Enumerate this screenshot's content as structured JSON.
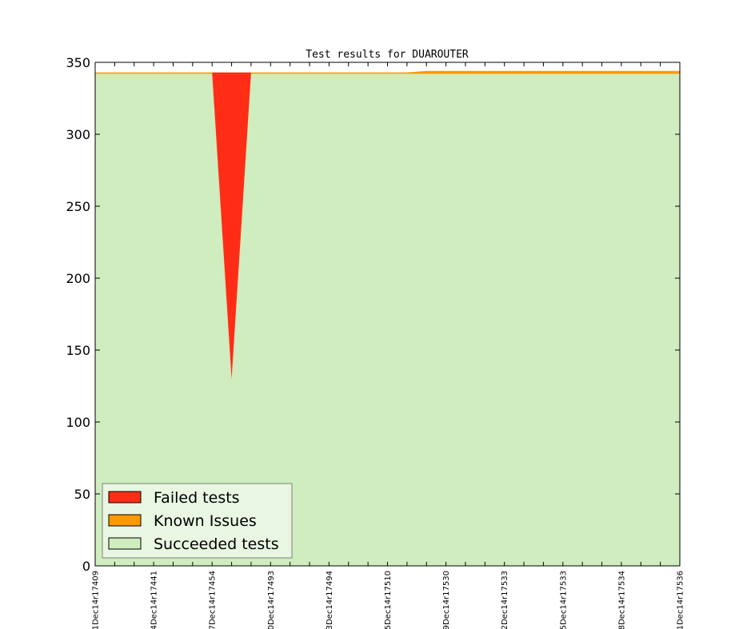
{
  "chart_data": {
    "type": "area",
    "title": "Test results for DUAROUTER",
    "xlabel": "",
    "ylabel": "",
    "ylim": [
      0,
      350
    ],
    "yticks": [
      0,
      50,
      100,
      150,
      200,
      250,
      300,
      350
    ],
    "xtick_labels": [
      "1Dec14r17409",
      "4Dec14r17441",
      "7Dec14r17454",
      "0Dec14r17493",
      "3Dec14r17494",
      "5Dec14r17510",
      "9Dec14r17530",
      "2Dec14r17533",
      "5Dec14r17533",
      "8Dec14r17534",
      "1Dec14r17536"
    ],
    "x": [
      0,
      1,
      2,
      3,
      4,
      5,
      6,
      7,
      8,
      9,
      10,
      11,
      12,
      13,
      14,
      15,
      16,
      17,
      18,
      19,
      20,
      21,
      22,
      23,
      24,
      25,
      26,
      27,
      28,
      29,
      30
    ],
    "series": [
      {
        "name": "Succeeded tests",
        "color": "#cfedbe",
        "values": [
          342,
          342,
          342,
          342,
          342,
          342,
          342,
          129,
          342,
          342,
          342,
          342,
          342,
          342,
          342,
          342,
          342,
          342,
          342,
          342,
          342,
          342,
          342,
          342,
          342,
          342,
          342,
          342,
          342,
          342,
          342
        ]
      },
      {
        "name": "Known Issues",
        "color": "#ff9900",
        "values": [
          1,
          1,
          1,
          1,
          1,
          1,
          1,
          1,
          1,
          1,
          1,
          1,
          1,
          1,
          1,
          1,
          1,
          2,
          2,
          2,
          2,
          2,
          2,
          2,
          2,
          2,
          2,
          2,
          2,
          2,
          2
        ]
      },
      {
        "name": "Failed tests",
        "color": "#ff2d16",
        "values": [
          0,
          0,
          0,
          0,
          0,
          0,
          0,
          213,
          0,
          0,
          0,
          0,
          0,
          0,
          0,
          0,
          0,
          0,
          0,
          0,
          0,
          0,
          0,
          0,
          0,
          0,
          0,
          0,
          0,
          0,
          0
        ]
      }
    ],
    "legend": {
      "placement": "lower-left",
      "entries": [
        "Failed tests",
        "Known Issues",
        "Succeeded tests"
      ]
    },
    "grid": false
  }
}
